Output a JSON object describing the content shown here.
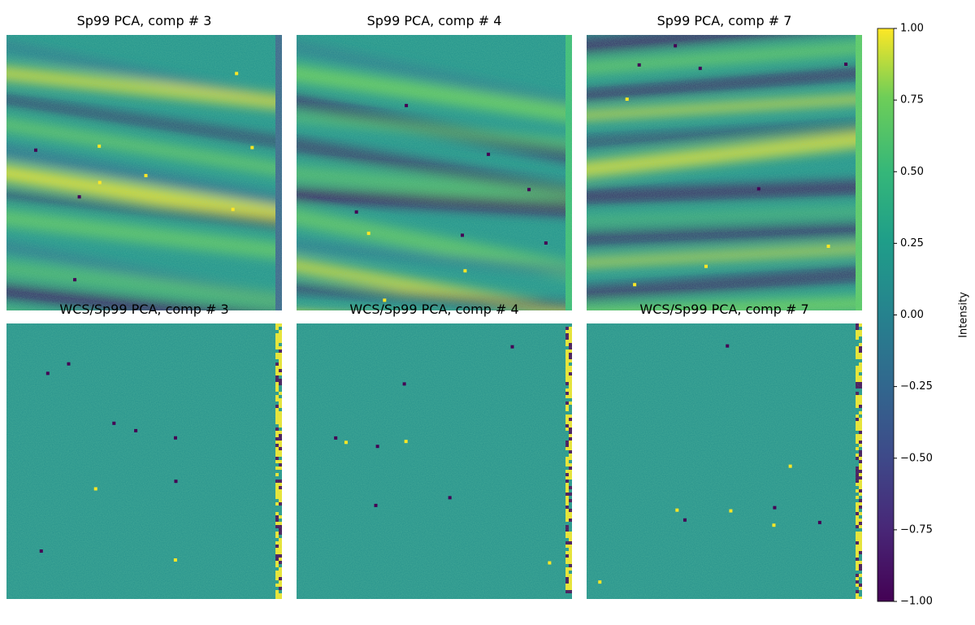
{
  "chart_data": {
    "type": "image_grid",
    "panels": [
      {
        "title": "Sp99 PCA, comp # 3"
      },
      {
        "title": "Sp99 PCA, comp # 4"
      },
      {
        "title": "Sp99 PCA, comp # 7"
      },
      {
        "title": "WCS/Sp99 PCA, comp # 3"
      },
      {
        "title": "WCS/Sp99 PCA, comp # 4"
      },
      {
        "title": "WCS/Sp99 PCA, comp # 7"
      }
    ],
    "colorbar": {
      "label": "Intensity",
      "colormap": "viridis",
      "lim": [
        -1,
        1
      ],
      "ticks": [
        {
          "value": 1,
          "label": "1.00"
        },
        {
          "value": 0.75,
          "label": "0.75"
        },
        {
          "value": 0.5,
          "label": "0.50"
        },
        {
          "value": 0.25,
          "label": "0.25"
        },
        {
          "value": 0,
          "label": "0.00"
        },
        {
          "value": -0.25,
          "label": "−0.25"
        },
        {
          "value": -0.5,
          "label": "−0.50"
        },
        {
          "value": -0.75,
          "label": "−0.75"
        },
        {
          "value": -1,
          "label": "−1.00"
        }
      ]
    }
  }
}
